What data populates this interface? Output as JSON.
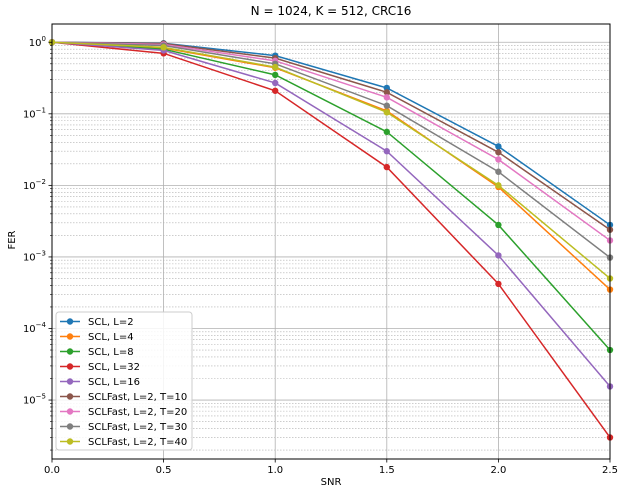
{
  "chart_data": {
    "type": "line",
    "title": "N = 1024, K = 512, CRC16",
    "xlabel": "SNR",
    "ylabel": "FER",
    "xlim": [
      0.0,
      2.5
    ],
    "ylim": [
      1.5e-06,
      1.8
    ],
    "yscale": "log",
    "grid": true,
    "minor_grid": true,
    "legend_position": "lower-left",
    "x": [
      0.0,
      0.5,
      1.0,
      1.5,
      2.0,
      2.5
    ],
    "x_tick_labels": [
      "0.0",
      "0.5",
      "1.0",
      "1.5",
      "2.0",
      "2.5"
    ],
    "y_ticks": [
      {
        "value": 1,
        "base": "10",
        "exp": "0"
      },
      {
        "value": 0.1,
        "base": "10",
        "exp": "−1"
      },
      {
        "value": 0.01,
        "base": "10",
        "exp": "−2"
      },
      {
        "value": 0.001,
        "base": "10",
        "exp": "−3"
      },
      {
        "value": 0.0001,
        "base": "10",
        "exp": "−4"
      },
      {
        "value": 1e-05,
        "base": "10",
        "exp": "−5"
      }
    ],
    "series": [
      {
        "name": "SCL, L=2",
        "color": "#1f77b4",
        "values": [
          1.0,
          0.97,
          0.65,
          0.23,
          0.035,
          0.0028
        ]
      },
      {
        "name": "SCL, L=4",
        "color": "#ff7f0e",
        "values": [
          1.0,
          0.83,
          0.44,
          0.11,
          0.0095,
          0.00035
        ]
      },
      {
        "name": "SCL, L=8",
        "color": "#2ca02c",
        "values": [
          1.0,
          0.8,
          0.35,
          0.056,
          0.0028,
          5e-05
        ]
      },
      {
        "name": "SCL, L=32",
        "color": "#d62728",
        "values": [
          1.0,
          0.7,
          0.21,
          0.018,
          0.00042,
          3e-06
        ]
      },
      {
        "name": "SCL, L=16",
        "color": "#9467bd",
        "values": [
          1.0,
          0.77,
          0.27,
          0.03,
          0.00105,
          1.55e-05
        ]
      },
      {
        "name": "SCLFast, L=2, T=10",
        "color": "#8c564b",
        "values": [
          1.0,
          0.96,
          0.6,
          0.2,
          0.029,
          0.0024
        ]
      },
      {
        "name": "SCLFast, L=2, T=20",
        "color": "#e377c2",
        "values": [
          1.0,
          0.93,
          0.55,
          0.17,
          0.023,
          0.0017
        ]
      },
      {
        "name": "SCLFast, L=2, T=30",
        "color": "#7f7f7f",
        "values": [
          1.0,
          0.9,
          0.5,
          0.13,
          0.0155,
          0.00098
        ]
      },
      {
        "name": "SCLFast, L=2, T=40",
        "color": "#bcbd22",
        "values": [
          1.0,
          0.85,
          0.45,
          0.105,
          0.01,
          0.0005
        ]
      }
    ]
  }
}
